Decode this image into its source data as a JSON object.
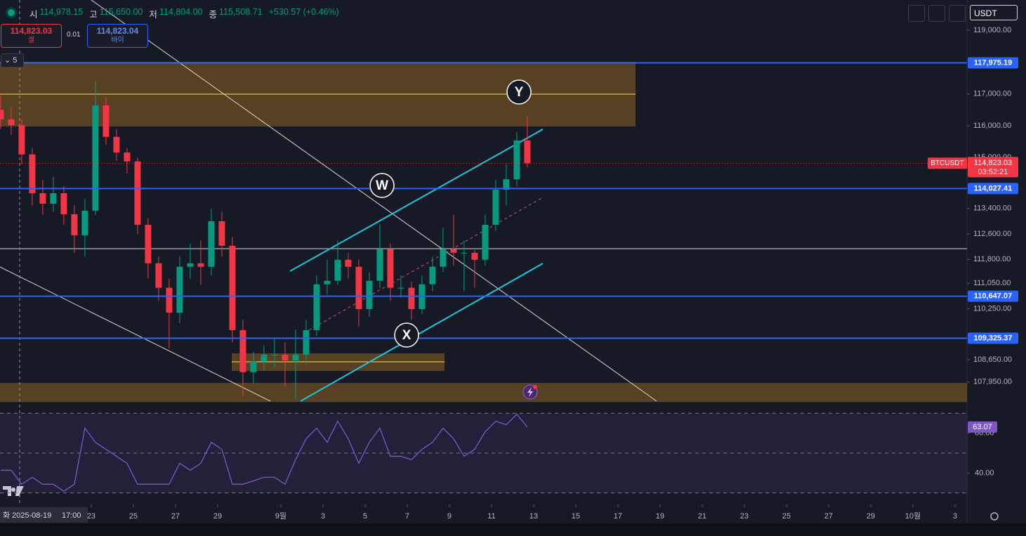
{
  "header": {
    "open_label": "시",
    "open": "114,978.15",
    "high_label": "고",
    "high": "115,650.00",
    "low_label": "저",
    "low": "114,804.00",
    "close_label": "종",
    "close": "115,508.71",
    "change": "+530.57 (+0.46%)"
  },
  "order": {
    "sell_price": "114,823.03",
    "sell_label": "셀",
    "spread": "0.01",
    "buy_price": "114,823.04",
    "buy_label": "바이",
    "layers": "5",
    "currency": "USDT"
  },
  "crosshair": {
    "day": "화",
    "date": "2025-08-19",
    "time": "17:00"
  },
  "chart_data": [
    {
      "type": "candlestick",
      "symbol": "BTCUSDT",
      "countdown": "03:52:21",
      "x": [
        18.7,
        19.2,
        19.7,
        20.2,
        20.7,
        21.2,
        21.7,
        22.2,
        22.7,
        23.2,
        23.7,
        24.2,
        24.7,
        25.2,
        25.7,
        26.2,
        26.7,
        27.2,
        27.7,
        28.2,
        28.7,
        29.2,
        29.7,
        30.2,
        30.7,
        31.2,
        31.7,
        32.2,
        32.7,
        33.2,
        33.7,
        34.2,
        34.7,
        35.2,
        35.7,
        36.2,
        36.7,
        37.2,
        37.7,
        38.2,
        38.7,
        39.2,
        39.7,
        40.2,
        40.7,
        41.2,
        41.7,
        42.2,
        42.7,
        43.2,
        43.7
      ],
      "open": [
        116500,
        116200,
        116020,
        115100,
        113880,
        113550,
        113880,
        113220,
        112560,
        113330,
        116640,
        115650,
        115160,
        114880,
        112890,
        111680,
        110910,
        110130,
        111570,
        111680,
        111570,
        113000,
        112230,
        109580,
        108260,
        108590,
        108810,
        108810,
        108630,
        108810,
        109580,
        111020,
        111130,
        111790,
        111570,
        110240,
        111130,
        112120,
        110910,
        110910,
        110240,
        111020,
        111570,
        112120,
        112010,
        112010,
        111790,
        112890,
        113990,
        114320,
        115540
      ],
      "high": [
        116950,
        116600,
        116200,
        115300,
        114300,
        114400,
        114100,
        113500,
        113700,
        117400,
        116900,
        115900,
        115300,
        115000,
        113100,
        111900,
        111200,
        111900,
        112300,
        112400,
        113400,
        113300,
        112500,
        109900,
        108900,
        109100,
        109300,
        109200,
        109600,
        109900,
        111300,
        111800,
        112400,
        112000,
        111800,
        111400,
        112900,
        112300,
        111300,
        111100,
        111300,
        111900,
        112800,
        113200,
        112400,
        112100,
        113200,
        114300,
        114800,
        115800,
        116300
      ],
      "low": [
        115900,
        115700,
        114800,
        113500,
        113200,
        113300,
        112900,
        112000,
        111900,
        113200,
        115400,
        114900,
        114500,
        112600,
        111200,
        110500,
        109000,
        109800,
        111200,
        111000,
        111300,
        111900,
        109200,
        107500,
        107900,
        108300,
        108400,
        107800,
        107400,
        108500,
        109400,
        110700,
        111000,
        111200,
        109700,
        110000,
        110900,
        110500,
        110600,
        109900,
        110100,
        110800,
        111400,
        111600,
        110800,
        110900,
        111600,
        112700,
        113500,
        114100,
        114700
      ],
      "close": [
        116200,
        116020,
        115100,
        113880,
        113550,
        113880,
        113220,
        112560,
        113330,
        116640,
        115650,
        115160,
        114880,
        112890,
        111680,
        110910,
        110130,
        111570,
        111680,
        111570,
        113000,
        112230,
        109580,
        108260,
        108590,
        108810,
        108810,
        108630,
        108810,
        109580,
        111020,
        111130,
        111790,
        111570,
        110240,
        111130,
        112120,
        110910,
        110910,
        110240,
        111020,
        111570,
        112120,
        112010,
        112010,
        111790,
        112890,
        113990,
        114320,
        115540,
        114823.03
      ],
      "up_color": "#089981",
      "down_color": "#f23645",
      "last_price": {
        "value": 114823.03,
        "label": "114,823.03"
      },
      "price_lines": [
        {
          "value": 117975.19,
          "label": "117,975.19"
        },
        {
          "value": 114027.41,
          "label": "114,027.41"
        },
        {
          "value": 110647.07,
          "label": "110,647.07"
        },
        {
          "value": 109325.37,
          "label": "109,325.37"
        }
      ],
      "line_color": "#2962ff",
      "annotations": [
        "W",
        "X",
        "Y"
      ],
      "xlim": [
        18.67,
        64.57
      ],
      "xticks": [
        23,
        25,
        27,
        29,
        {
          "value": 32,
          "label": "9월"
        },
        {
          "value": 34,
          "label": "3"
        },
        {
          "value": 36,
          "label": "5"
        },
        {
          "value": 38,
          "label": "7"
        },
        {
          "value": 40,
          "label": "9"
        },
        {
          "value": 42,
          "label": "11"
        },
        {
          "value": 44,
          "label": "13"
        },
        {
          "value": 46,
          "label": "15"
        },
        {
          "value": 48,
          "label": "17"
        },
        {
          "value": 50,
          "label": "19"
        },
        {
          "value": 52,
          "label": "21"
        },
        {
          "value": 54,
          "label": "23"
        },
        {
          "value": 56,
          "label": "25"
        },
        {
          "value": 58,
          "label": "27"
        },
        {
          "value": 60,
          "label": "29"
        },
        {
          "value": 62,
          "label": "10월"
        },
        {
          "value": 64,
          "label": "3"
        }
      ],
      "ylim": [
        107350,
        119950
      ],
      "yticks": [
        {
          "value": 119000,
          "label": "119,000.00"
        },
        {
          "value": 117000,
          "label": "117,000.00"
        },
        {
          "value": 116000,
          "label": "116,000.00"
        },
        {
          "value": 115000,
          "label": "115,000.00"
        },
        {
          "value": 113400,
          "label": "113,400.00"
        },
        {
          "value": 112600,
          "label": "112,600.00"
        },
        {
          "value": 111800,
          "label": "111,800.00"
        },
        {
          "value": 111050,
          "label": "111,050.00"
        },
        {
          "value": 110250,
          "label": "110,250.00"
        },
        {
          "value": 108650,
          "label": "108,650.00"
        },
        {
          "value": 107950,
          "label": "107,950.00"
        }
      ],
      "grid": false
    },
    {
      "type": "line",
      "color": "#7e57c2",
      "values": [
        41.4,
        41.4,
        34.4,
        37.9,
        34.4,
        34.4,
        30.9,
        34.4,
        62.5,
        55.4,
        51.9,
        48.4,
        44.9,
        34.4,
        34.4,
        34.4,
        34.4,
        44.9,
        41.4,
        44.9,
        55.4,
        51.9,
        34.4,
        34.4,
        36.1,
        37.9,
        37.9,
        34.4,
        46.7,
        57.2,
        62.5,
        55.4,
        66,
        57.2,
        44.9,
        55.4,
        62.5,
        48.4,
        48.4,
        46.7,
        51.9,
        55.4,
        62.5,
        57.2,
        48.4,
        51.9,
        60.7,
        66,
        64.2,
        69.5,
        63.07
      ],
      "ylim": [
        25,
        75
      ],
      "yticks": [
        {
          "value": 60,
          "label": "60.00"
        },
        {
          "value": 40,
          "label": "40.00"
        }
      ],
      "levels": [
        30,
        50,
        70
      ]
    }
  ]
}
